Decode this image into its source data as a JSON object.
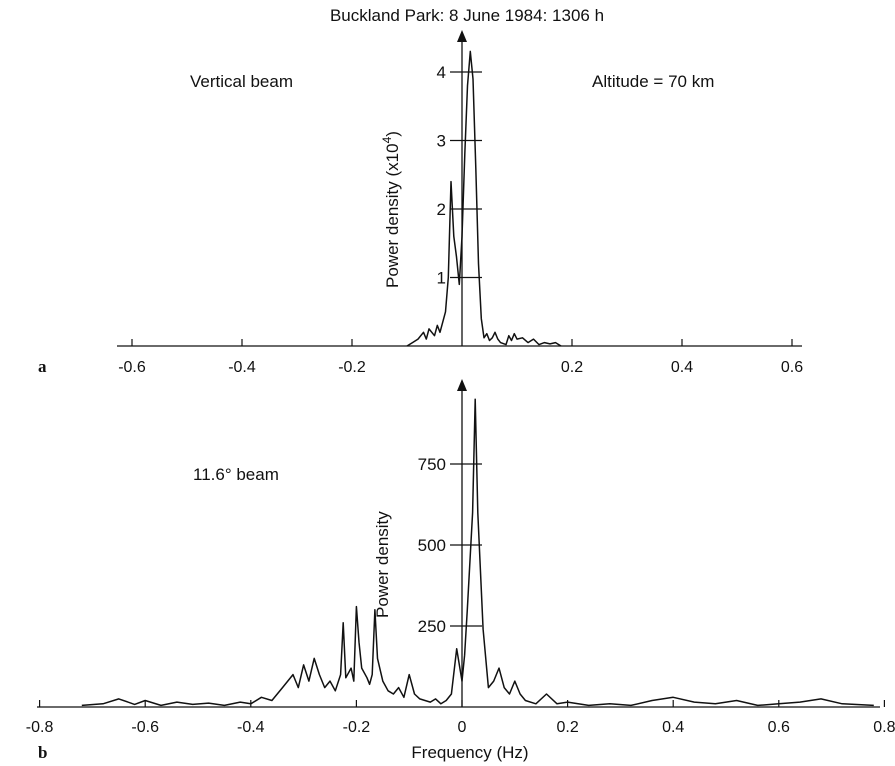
{
  "figure_title": "Buckland Park: 8 June 1984: 1306 h",
  "chart_data": [
    {
      "type": "line",
      "panel_label": "a",
      "annotations": [
        "Vertical beam",
        "Altitude = 70 km"
      ],
      "xlabel": "",
      "ylabel": "Power density (x10",
      "ylabel_sup": "4",
      "ylabel_close": ")",
      "xlim": [
        -0.65,
        0.65
      ],
      "ylim": [
        0,
        4.3
      ],
      "xticks": [
        -0.6,
        -0.4,
        -0.2,
        0.2,
        0.4,
        0.6
      ],
      "xtick_labels": [
        "-0.6",
        "-0.4",
        "-0.2",
        "0.2",
        "0.4",
        "0.6"
      ],
      "yticks": [
        1,
        2,
        3,
        4
      ],
      "ytick_labels": [
        "1",
        "2",
        "3",
        "4"
      ],
      "series": [
        {
          "x": [
            -0.1,
            -0.09,
            -0.08,
            -0.07,
            -0.065,
            -0.06,
            -0.05,
            -0.045,
            -0.04,
            -0.03,
            -0.025,
            -0.02,
            -0.015,
            -0.01,
            -0.005,
            0.0,
            0.005,
            0.01,
            0.015,
            0.02,
            0.025,
            0.03,
            0.035,
            0.04,
            0.045,
            0.05,
            0.055,
            0.06,
            0.065,
            0.07,
            0.08,
            0.085,
            0.09,
            0.095,
            0.1,
            0.11,
            0.12,
            0.13,
            0.14,
            0.15,
            0.16,
            0.17,
            0.18
          ],
          "values": [
            0.0,
            0.05,
            0.1,
            0.2,
            0.1,
            0.25,
            0.15,
            0.3,
            0.2,
            0.5,
            1.0,
            2.4,
            1.6,
            1.3,
            0.9,
            1.6,
            2.8,
            3.8,
            4.3,
            3.9,
            2.6,
            1.2,
            0.4,
            0.12,
            0.18,
            0.08,
            0.12,
            0.2,
            0.1,
            0.05,
            0.02,
            0.15,
            0.08,
            0.18,
            0.1,
            0.12,
            0.05,
            0.1,
            0.02,
            0.05,
            0.03,
            0.05,
            0.0
          ]
        }
      ]
    },
    {
      "type": "line",
      "panel_label": "b",
      "annotations": [
        "11.6° beam"
      ],
      "xlabel": "Frequency (Hz)",
      "ylabel": "Power density",
      "xlim": [
        -0.8,
        0.8
      ],
      "ylim": [
        0,
        950
      ],
      "xticks": [
        -0.8,
        -0.6,
        -0.4,
        -0.2,
        0,
        0.2,
        0.4,
        0.6,
        0.8
      ],
      "xtick_labels": [
        "-0.8",
        "-0.6",
        "-0.4",
        "-0.2",
        "0",
        "0.2",
        "0.4",
        "0.6",
        "0.8"
      ],
      "yticks": [
        250,
        500,
        750
      ],
      "ytick_labels": [
        "250",
        "500",
        "750"
      ],
      "series": [
        {
          "x": [
            -0.72,
            -0.68,
            -0.65,
            -0.62,
            -0.6,
            -0.57,
            -0.54,
            -0.51,
            -0.48,
            -0.45,
            -0.42,
            -0.4,
            -0.38,
            -0.36,
            -0.34,
            -0.32,
            -0.31,
            -0.3,
            -0.29,
            -0.28,
            -0.27,
            -0.26,
            -0.25,
            -0.24,
            -0.23,
            -0.225,
            -0.22,
            -0.21,
            -0.205,
            -0.2,
            -0.195,
            -0.19,
            -0.18,
            -0.175,
            -0.17,
            -0.165,
            -0.16,
            -0.15,
            -0.14,
            -0.13,
            -0.12,
            -0.11,
            -0.1,
            -0.09,
            -0.08,
            -0.07,
            -0.06,
            -0.05,
            -0.04,
            -0.03,
            -0.02,
            -0.01,
            0.0,
            0.005,
            0.01,
            0.02,
            0.025,
            0.03,
            0.04,
            0.05,
            0.06,
            0.07,
            0.08,
            0.09,
            0.1,
            0.11,
            0.12,
            0.14,
            0.16,
            0.18,
            0.2,
            0.24,
            0.28,
            0.32,
            0.36,
            0.4,
            0.44,
            0.48,
            0.52,
            0.56,
            0.6,
            0.64,
            0.68,
            0.72,
            0.78
          ],
          "values": [
            5,
            10,
            25,
            8,
            20,
            5,
            15,
            8,
            12,
            5,
            15,
            10,
            30,
            20,
            60,
            100,
            60,
            130,
            80,
            150,
            100,
            60,
            80,
            50,
            100,
            260,
            90,
            120,
            80,
            310,
            200,
            120,
            90,
            70,
            100,
            300,
            150,
            80,
            50,
            40,
            60,
            30,
            100,
            40,
            25,
            20,
            15,
            25,
            10,
            20,
            40,
            180,
            80,
            160,
            300,
            600,
            950,
            600,
            240,
            60,
            80,
            120,
            60,
            40,
            80,
            40,
            20,
            10,
            40,
            10,
            15,
            5,
            10,
            5,
            20,
            30,
            15,
            10,
            20,
            5,
            10,
            15,
            25,
            10,
            5
          ]
        }
      ]
    }
  ]
}
